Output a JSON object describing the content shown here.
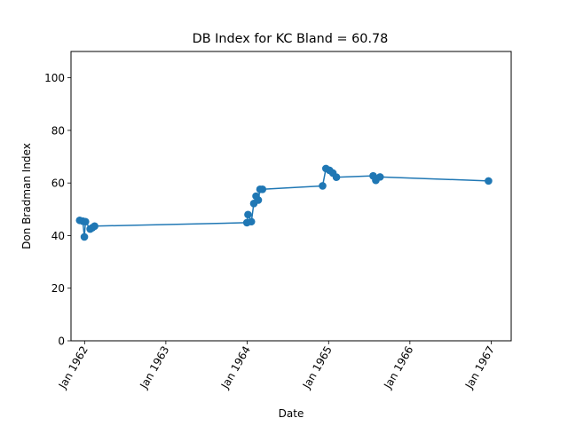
{
  "chart_data": {
    "type": "line",
    "title": "DB Index for KC Bland = 60.78",
    "xlabel": "Date",
    "ylabel": "Don Bradman Index",
    "xlim": [
      "1961-11-01",
      "1967-04-01"
    ],
    "ylim": [
      0,
      110
    ],
    "x_ticks": [
      "1962-01-01",
      "1963-01-01",
      "1964-01-01",
      "1965-01-01",
      "1966-01-01",
      "1967-01-01"
    ],
    "x_tick_labels": [
      "Jan 1962",
      "Jan 1963",
      "Jan 1964",
      "Jan 1965",
      "Jan 1966",
      "Jan 1967"
    ],
    "y_ticks": [
      0,
      20,
      40,
      60,
      80,
      100
    ],
    "y_tick_labels": [
      "0",
      "20",
      "40",
      "60",
      "80",
      "100"
    ],
    "grid": false,
    "color": "#1f77b4",
    "series": [
      {
        "x": [
          "1961-12-10",
          "1961-12-24",
          "1961-12-31",
          "1962-01-05",
          "1962-01-26",
          "1962-02-05",
          "1962-02-15",
          "1963-12-31",
          "1964-01-05",
          "1964-01-20",
          "1964-01-31",
          "1964-02-10",
          "1964-02-20",
          "1964-02-28",
          "1964-03-10",
          "1964-12-05",
          "1964-12-20",
          "1965-01-05",
          "1965-01-20",
          "1965-02-05",
          "1965-07-20",
          "1965-08-01",
          "1965-08-20",
          "1966-12-20"
        ],
        "y": [
          45.8,
          45.5,
          39.5,
          45.3,
          42.5,
          43.0,
          43.6,
          44.9,
          48.0,
          45.3,
          52.2,
          55.0,
          53.5,
          57.6,
          57.6,
          58.9,
          65.5,
          64.8,
          63.8,
          62.2,
          62.7,
          61.0,
          62.3,
          60.78
        ]
      }
    ]
  }
}
